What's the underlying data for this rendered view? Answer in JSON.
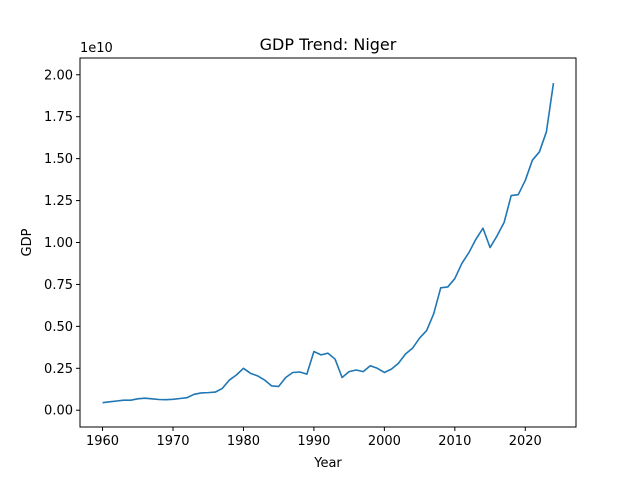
{
  "chart_data": {
    "type": "line",
    "title": "GDP Trend: Niger",
    "xlabel": "Year",
    "ylabel": "GDP",
    "y_offset_label": "1e10",
    "xlim": [
      1956.8,
      2027.2
    ],
    "ylim": [
      -0.1,
      2.1
    ],
    "x_ticks": [
      1960,
      1970,
      1980,
      1990,
      2000,
      2010,
      2020
    ],
    "y_ticks": [
      "0.00",
      "0.25",
      "0.50",
      "0.75",
      "1.00",
      "1.25",
      "1.50",
      "1.75",
      "2.00"
    ],
    "grid": false,
    "line_color": "#1f77b4",
    "series": [
      {
        "x": [
          1960,
          1961,
          1962,
          1963,
          1964,
          1965,
          1966,
          1967,
          1968,
          1969,
          1970,
          1971,
          1972,
          1973,
          1974,
          1975,
          1976,
          1977,
          1978,
          1979,
          1980,
          1981,
          1982,
          1983,
          1984,
          1985,
          1986,
          1987,
          1988,
          1989,
          1990,
          1991,
          1992,
          1993,
          1994,
          1995,
          1996,
          1997,
          1998,
          1999,
          2000,
          2001,
          2002,
          2003,
          2004,
          2005,
          2006,
          2007,
          2008,
          2009,
          2010,
          2011,
          2012,
          2013,
          2014,
          2015,
          2016,
          2017,
          2018,
          2019,
          2020,
          2021,
          2022,
          2023,
          2024
        ],
        "y": [
          0.045,
          0.05,
          0.055,
          0.06,
          0.06,
          0.068,
          0.072,
          0.068,
          0.064,
          0.063,
          0.065,
          0.07,
          0.075,
          0.095,
          0.103,
          0.105,
          0.108,
          0.13,
          0.18,
          0.21,
          0.25,
          0.22,
          0.205,
          0.18,
          0.145,
          0.142,
          0.195,
          0.225,
          0.228,
          0.215,
          0.35,
          0.33,
          0.34,
          0.305,
          0.195,
          0.23,
          0.24,
          0.23,
          0.265,
          0.25,
          0.225,
          0.245,
          0.28,
          0.335,
          0.37,
          0.43,
          0.475,
          0.575,
          0.73,
          0.735,
          0.785,
          0.875,
          0.94,
          1.02,
          1.085,
          0.97,
          1.04,
          1.12,
          1.28,
          1.285,
          1.37,
          1.49,
          1.54,
          1.66,
          1.95
        ]
      }
    ]
  }
}
